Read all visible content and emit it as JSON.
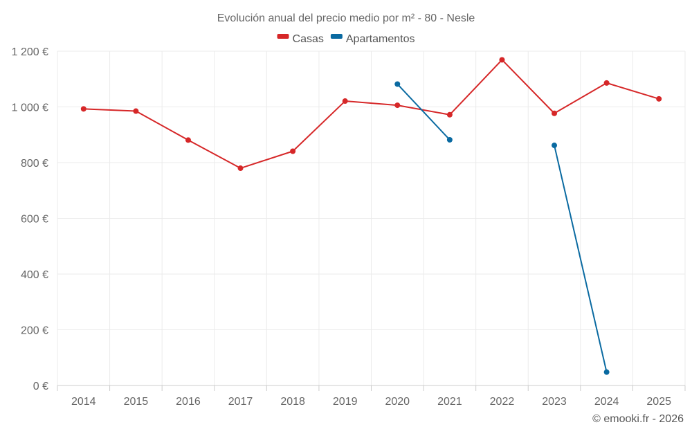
{
  "chart_data": {
    "type": "line",
    "title": "Evolución anual del precio medio por m² - 80 - Nesle",
    "xlabel": "",
    "ylabel": "",
    "categories": [
      "2014",
      "2015",
      "2016",
      "2017",
      "2018",
      "2019",
      "2020",
      "2021",
      "2022",
      "2023",
      "2024",
      "2025"
    ],
    "ylim": [
      0,
      1200
    ],
    "yticks": [
      0,
      200,
      400,
      600,
      800,
      1000,
      1200
    ],
    "ytick_labels": [
      "0 €",
      "200 €",
      "400 €",
      "600 €",
      "800 €",
      "1 000 €",
      "1 200 €"
    ],
    "grid": true,
    "legend_position": "top-center",
    "series": [
      {
        "name": "Casas",
        "color": "#d62728",
        "values": [
          993,
          985,
          881,
          780,
          841,
          1021,
          1006,
          972,
          1169,
          977,
          1086,
          1029
        ]
      },
      {
        "name": "Apartamentos",
        "color": "#0a6aa1",
        "values": [
          null,
          null,
          null,
          null,
          null,
          null,
          1082,
          882,
          null,
          862,
          48,
          null
        ]
      }
    ]
  },
  "credit": "© emooki.fr - 2026"
}
